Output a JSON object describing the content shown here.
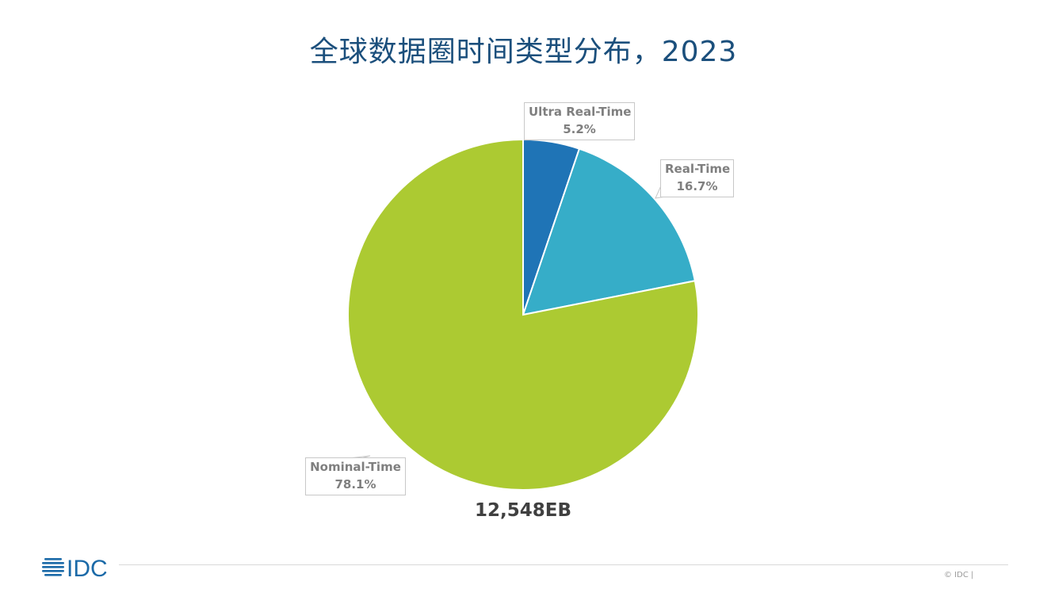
{
  "header": {
    "title": "全球数据圈时间类型分布，2023"
  },
  "chart_data": {
    "type": "pie",
    "title": "全球数据圈时间类型分布，2023",
    "start_angle_deg": 0,
    "direction": "clockwise",
    "slices": [
      {
        "label": "Ultra Real-Time",
        "value": 5.2,
        "value_label": "5.2%",
        "color": "#1f74b6"
      },
      {
        "label": "Real-Time",
        "value": 16.7,
        "value_label": "16.7%",
        "color": "#36adc8"
      },
      {
        "label": "Nominal-Time",
        "value": 78.1,
        "value_label": "78.1%",
        "color": "#acca32"
      }
    ],
    "total_label": "12,548EB"
  },
  "footer": {
    "logo_text": "IDC",
    "copyright": "© IDC |",
    "brand_color": "#1b6aa8"
  }
}
